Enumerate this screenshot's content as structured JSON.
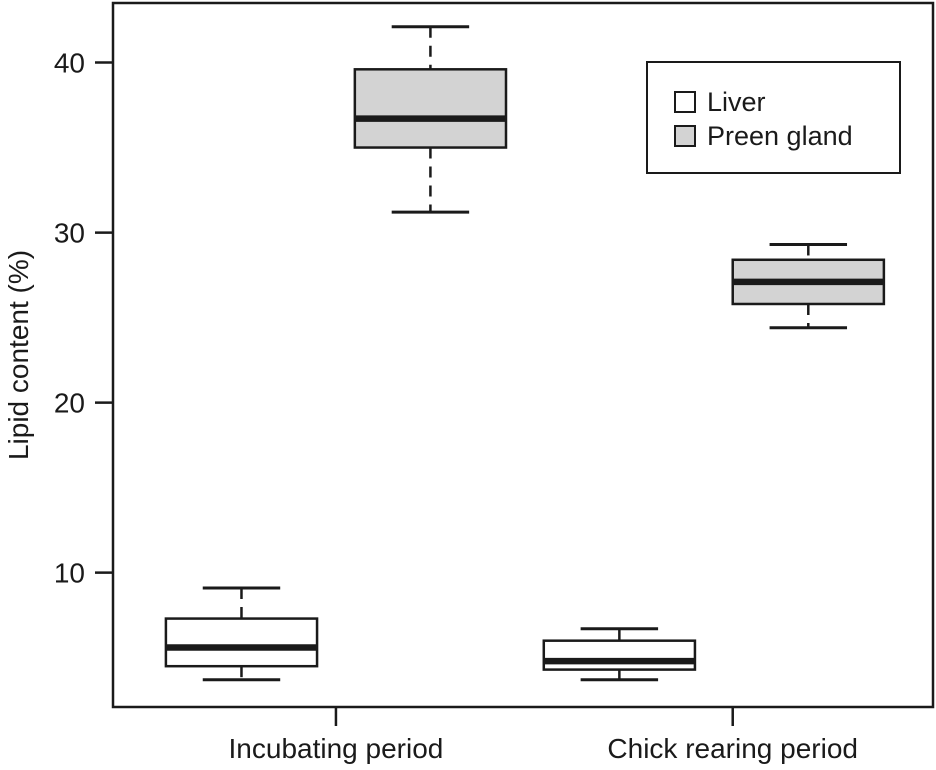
{
  "chart_data": {
    "type": "boxplot",
    "title": "",
    "xlabel": "",
    "ylabel": "Lipid content (%)",
    "ylim": [
      2.1,
      43.5
    ],
    "xlim": [
      0.32,
      4.66
    ],
    "y_ticks": [
      10,
      20,
      30,
      40
    ],
    "x_ticks": [
      {
        "pos": 1.5,
        "label": "Incubating period"
      },
      {
        "pos": 3.6,
        "label": "Chick rearing period"
      }
    ],
    "grid": false,
    "box_width": 0.8,
    "cap_width": 0.41,
    "series": [
      {
        "name": "Liver",
        "fill": "#ffffff"
      },
      {
        "name": "Preen gland",
        "fill": "#d3d3d3"
      }
    ],
    "boxes": [
      {
        "group": "Incubating period",
        "series": "Liver",
        "pos": 1,
        "whislo": 3.7,
        "q1": 4.5,
        "med": 5.6,
        "q3": 7.3,
        "whishi": 9.1
      },
      {
        "group": "Incubating period",
        "series": "Preen gland",
        "pos": 2,
        "whislo": 31.2,
        "q1": 35.0,
        "med": 36.7,
        "q3": 39.6,
        "whishi": 42.1
      },
      {
        "group": "Chick rearing period",
        "series": "Liver",
        "pos": 3,
        "whislo": 3.7,
        "q1": 4.3,
        "med": 4.8,
        "q3": 6.0,
        "whishi": 6.7
      },
      {
        "group": "Chick rearing period",
        "series": "Preen gland",
        "pos": 4,
        "whislo": 24.4,
        "q1": 25.8,
        "med": 27.1,
        "q3": 28.4,
        "whishi": 29.3
      }
    ],
    "legend": {
      "position": "top-right",
      "entries": [
        {
          "label": "Liver",
          "fill": "#ffffff"
        },
        {
          "label": "Preen gland",
          "fill": "#d3d3d3"
        }
      ]
    },
    "colors": {
      "line": "#1a1a1a",
      "background": "#ffffff"
    }
  }
}
